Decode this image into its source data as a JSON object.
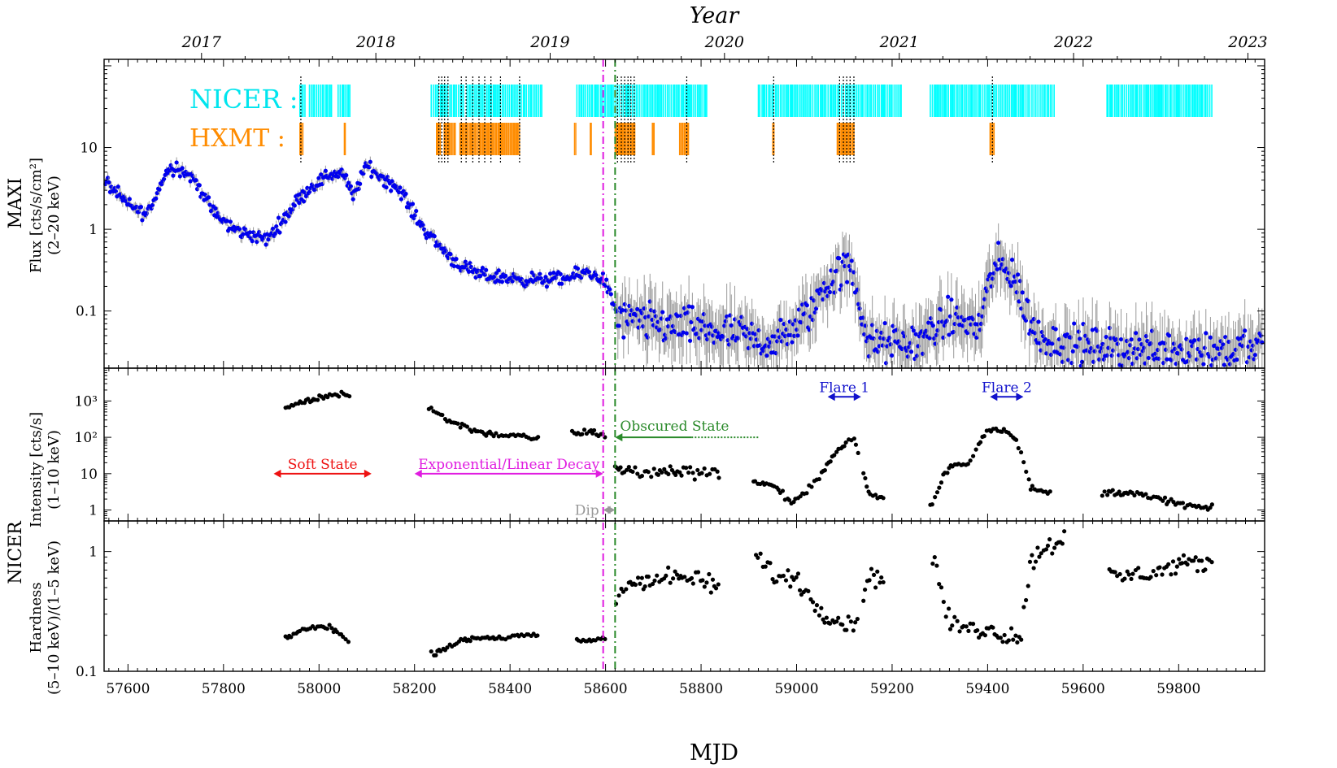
{
  "chart_data": {
    "type": "scatter",
    "top_axis": {
      "title": "Year",
      "ticks": [
        {
          "mjd": 57754,
          "label": "2017"
        },
        {
          "mjd": 58119,
          "label": "2018"
        },
        {
          "mjd": 58484,
          "label": "2019"
        },
        {
          "mjd": 58849,
          "label": "2020"
        },
        {
          "mjd": 59215,
          "label": "2021"
        },
        {
          "mjd": 59580,
          "label": "2022"
        },
        {
          "mjd": 59945,
          "label": "2023"
        }
      ]
    },
    "xlabel": "MJD",
    "xlim": [
      57550,
      59980
    ],
    "xticks": [
      57600,
      57800,
      58000,
      58200,
      58400,
      58600,
      58800,
      59000,
      59200,
      59400,
      59600,
      59800
    ],
    "instrument_labels": {
      "maxi": "MAXI",
      "nicer": "NICER"
    },
    "vlines": [
      {
        "mjd": 58595,
        "color": "#e01ce0",
        "style": "dashdot"
      },
      {
        "mjd": 58620,
        "color": "#2a8a2a",
        "style": "dashdot"
      }
    ],
    "panels": {
      "maxi": {
        "ylabel_lines": [
          "Flux [cts/s/cm²]",
          "(2–20 keV)"
        ],
        "scale": "log",
        "ylim": [
          0.02,
          120
        ],
        "yticks": [
          {
            "v": 0.1,
            "label": "0.1"
          },
          {
            "v": 1,
            "label": "1"
          },
          {
            "v": 10,
            "label": "10"
          }
        ],
        "marker_color": "#0000ee",
        "nicer_label": "NICER :",
        "nicer_color": "#00ffff",
        "hxmt_label": "HXMT :",
        "hxmt_color": "#ff8c00",
        "nicer_ranges": [
          [
            57960,
            57972
          ],
          [
            57980,
            58030
          ],
          [
            58040,
            58065
          ],
          [
            58235,
            58305
          ],
          [
            58310,
            58420
          ],
          [
            58420,
            58470
          ],
          [
            58540,
            58812
          ],
          [
            58920,
            59220
          ],
          [
            59280,
            59540
          ],
          [
            59650,
            59870
          ]
        ],
        "hxmt_ranges": [
          [
            57960,
            57967
          ],
          [
            58053,
            58057
          ],
          [
            58246,
            58256
          ],
          [
            58262,
            58286
          ],
          [
            58295,
            58420
          ],
          [
            58535,
            58538
          ],
          [
            58568,
            58572
          ],
          [
            58620,
            58662
          ],
          [
            58698,
            58702
          ],
          [
            58755,
            58775
          ],
          [
            58950,
            58955
          ],
          [
            59085,
            59123
          ],
          [
            59405,
            59415
          ]
        ],
        "series_points": [
          [
            57550,
            4.0
          ],
          [
            57600,
            2.0
          ],
          [
            57640,
            1.5
          ],
          [
            57680,
            5.0
          ],
          [
            57700,
            6.0
          ],
          [
            57740,
            4.0
          ],
          [
            57780,
            1.6
          ],
          [
            57820,
            1.0
          ],
          [
            57860,
            0.85
          ],
          [
            57890,
            0.75
          ],
          [
            57920,
            1.2
          ],
          [
            57960,
            2.5
          ],
          [
            57990,
            3.5
          ],
          [
            58020,
            4.6
          ],
          [
            58050,
            5.0
          ],
          [
            58070,
            2.5
          ],
          [
            58100,
            6.0
          ],
          [
            58140,
            4.0
          ],
          [
            58170,
            3.0
          ],
          [
            58210,
            1.2
          ],
          [
            58250,
            0.65
          ],
          [
            58290,
            0.38
          ],
          [
            58330,
            0.28
          ],
          [
            58400,
            0.25
          ],
          [
            58460,
            0.24
          ],
          [
            58520,
            0.25
          ],
          [
            58560,
            0.3
          ],
          [
            58595,
            0.25
          ],
          [
            58610,
            0.16
          ],
          [
            58625,
            0.08
          ],
          [
            58700,
            0.07
          ],
          [
            58800,
            0.06
          ],
          [
            58880,
            0.05
          ],
          [
            58950,
            0.04
          ],
          [
            58980,
            0.05
          ],
          [
            59030,
            0.1
          ],
          [
            59060,
            0.2
          ],
          [
            59090,
            0.3
          ],
          [
            59110,
            0.35
          ],
          [
            59130,
            0.15
          ],
          [
            59150,
            0.04
          ],
          [
            59200,
            0.04
          ],
          [
            59250,
            0.04
          ],
          [
            59300,
            0.07
          ],
          [
            59340,
            0.08
          ],
          [
            59380,
            0.06
          ],
          [
            59400,
            0.2
          ],
          [
            59420,
            0.35
          ],
          [
            59450,
            0.3
          ],
          [
            59470,
            0.15
          ],
          [
            59500,
            0.05
          ],
          [
            59560,
            0.04
          ],
          [
            59650,
            0.035
          ],
          [
            59750,
            0.035
          ],
          [
            59850,
            0.033
          ],
          [
            59960,
            0.035
          ]
        ]
      },
      "intensity": {
        "ylabel_lines": [
          "Intensity [cts/s]",
          "(1–10 keV)"
        ],
        "scale": "log",
        "ylim": [
          0.5,
          8000
        ],
        "yticks": [
          {
            "v": 1,
            "label": "1"
          },
          {
            "v": 10,
            "label": "10"
          },
          {
            "v": 100,
            "label": "10²"
          },
          {
            "v": 1000,
            "label": "10³"
          }
        ],
        "series_points": [
          [
            57935,
            700
          ],
          [
            57960,
            850
          ],
          [
            57990,
            1100
          ],
          [
            58020,
            1400
          ],
          [
            58050,
            1700
          ],
          [
            58060,
            1300
          ],
          [
            58235,
            600
          ],
          [
            58270,
            300
          ],
          [
            58310,
            180
          ],
          [
            58350,
            130
          ],
          [
            58400,
            110
          ],
          [
            58450,
            95
          ],
          [
            58540,
            130
          ],
          [
            58570,
            140
          ],
          [
            58595,
            120
          ],
          [
            58625,
            12
          ],
          [
            58700,
            11
          ],
          [
            58800,
            12
          ],
          [
            58840,
            10
          ],
          [
            58920,
            6
          ],
          [
            58960,
            4
          ],
          [
            58990,
            1.5
          ],
          [
            59020,
            3
          ],
          [
            59060,
            15
          ],
          [
            59090,
            50
          ],
          [
            59120,
            100
          ],
          [
            59150,
            3
          ],
          [
            59180,
            2
          ],
          [
            59285,
            1.5
          ],
          [
            59310,
            10
          ],
          [
            59330,
            18
          ],
          [
            59360,
            20
          ],
          [
            59400,
            180
          ],
          [
            59450,
            140
          ],
          [
            59470,
            40
          ],
          [
            59490,
            4
          ],
          [
            59520,
            3
          ],
          [
            59650,
            3
          ],
          [
            59700,
            3
          ],
          [
            59800,
            1.5
          ],
          [
            59860,
            1.1
          ]
        ]
      },
      "hardness": {
        "ylabel_lines": [
          "Hardness",
          "(5–10 keV)/(1–5 keV)"
        ],
        "scale": "log",
        "ylim": [
          0.1,
          1.8
        ],
        "yticks": [
          {
            "v": 0.1,
            "label": "0.1"
          },
          {
            "v": 1,
            "label": "1"
          }
        ],
        "series_points": [
          [
            57935,
            0.19
          ],
          [
            57960,
            0.22
          ],
          [
            57990,
            0.23
          ],
          [
            58020,
            0.24
          ],
          [
            58060,
            0.18
          ],
          [
            58240,
            0.14
          ],
          [
            58280,
            0.17
          ],
          [
            58330,
            0.19
          ],
          [
            58380,
            0.19
          ],
          [
            58430,
            0.2
          ],
          [
            58540,
            0.18
          ],
          [
            58575,
            0.18
          ],
          [
            58600,
            0.19
          ],
          [
            58630,
            0.5
          ],
          [
            58700,
            0.6
          ],
          [
            58780,
            0.6
          ],
          [
            58830,
            0.5
          ],
          [
            58920,
            0.9
          ],
          [
            58960,
            0.6
          ],
          [
            59000,
            0.6
          ],
          [
            59030,
            0.4
          ],
          [
            59060,
            0.3
          ],
          [
            59100,
            0.25
          ],
          [
            59120,
            0.24
          ],
          [
            59150,
            0.6
          ],
          [
            59180,
            0.6
          ],
          [
            59290,
            0.8
          ],
          [
            59320,
            0.25
          ],
          [
            59360,
            0.23
          ],
          [
            59400,
            0.22
          ],
          [
            59440,
            0.2
          ],
          [
            59470,
            0.2
          ],
          [
            59490,
            0.8
          ],
          [
            59520,
            1.1
          ],
          [
            59560,
            1.3
          ],
          [
            59660,
            0.6
          ],
          [
            59720,
            0.65
          ],
          [
            59800,
            0.75
          ],
          [
            59860,
            0.8
          ]
        ]
      }
    },
    "annotations": [
      {
        "text": "Soft State",
        "x1": 57905,
        "x2": 58110,
        "y": 10,
        "color": "#ee1111"
      },
      {
        "text": "Exponential/Linear Decay",
        "x1": 58200,
        "x2": 58595,
        "y": 10,
        "color": "#e01ce0"
      },
      {
        "text": "Dip",
        "x1": 58595,
        "x2": 58620,
        "y": 1.0,
        "color": "#999999"
      },
      {
        "text": "Obscured State",
        "x1": 58620,
        "x2": 58780,
        "y": 100,
        "color": "#2a8a2a",
        "dotted_to": 58920
      },
      {
        "text": "Flare 1",
        "x1": 59065,
        "x2": 59135,
        "y": 1300,
        "color": "#1111cc"
      },
      {
        "text": "Flare 2",
        "x1": 59405,
        "x2": 59475,
        "y": 1300,
        "color": "#1111cc"
      }
    ]
  }
}
